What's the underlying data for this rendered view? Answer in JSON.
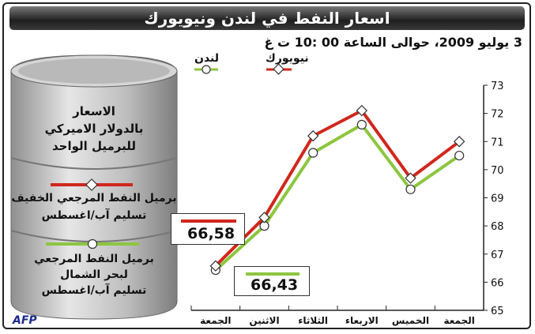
{
  "header": {
    "title": "اسعار النفط في لندن ونيويورك",
    "subtitle": "3 يوليو 2009، حوالى الساعة 00 :10 ت غ"
  },
  "legend": {
    "newyork": "نيويورك",
    "london": "لندن"
  },
  "side_panel": {
    "units": [
      "الاسعار",
      "بالدولار الاميركي",
      "للبرميل الواحد"
    ],
    "wti": [
      "برميل النفط المرجعي الخفيف",
      "تسليم آب/اغسطس"
    ],
    "brent": [
      "برميل النفط المرجعي",
      "لبحر الشمال",
      "تسليم آب/اغسطس"
    ]
  },
  "callouts": {
    "newyork_value": "66,58",
    "london_value": "66,43"
  },
  "source": "AFP",
  "colors": {
    "newyork": "#d0271d",
    "london": "#8cc63f",
    "title_bar": "#2a2a2a",
    "panel_barrel": "#c8c8c8"
  },
  "chart_data": {
    "type": "line",
    "categories": [
      "الجمعة",
      "الخميس",
      "الاربعاء",
      "الثلاثاء",
      "الاثنين",
      "الجمعة"
    ],
    "x_order": "right-to-left",
    "ylim": [
      65,
      73
    ],
    "yticks": [
      65,
      66,
      67,
      68,
      69,
      70,
      71,
      72,
      73
    ],
    "y_axis_side": "right",
    "series": [
      {
        "name": "نيويورك",
        "color": "#d0271d",
        "marker": "diamond",
        "values": [
          71.0,
          69.7,
          72.1,
          71.2,
          68.3,
          66.58
        ]
      },
      {
        "name": "لندن",
        "color": "#8cc63f",
        "marker": "circle",
        "values": [
          70.5,
          69.3,
          71.6,
          70.6,
          68.0,
          66.43
        ]
      }
    ],
    "grid": false,
    "legend_position": "top"
  }
}
